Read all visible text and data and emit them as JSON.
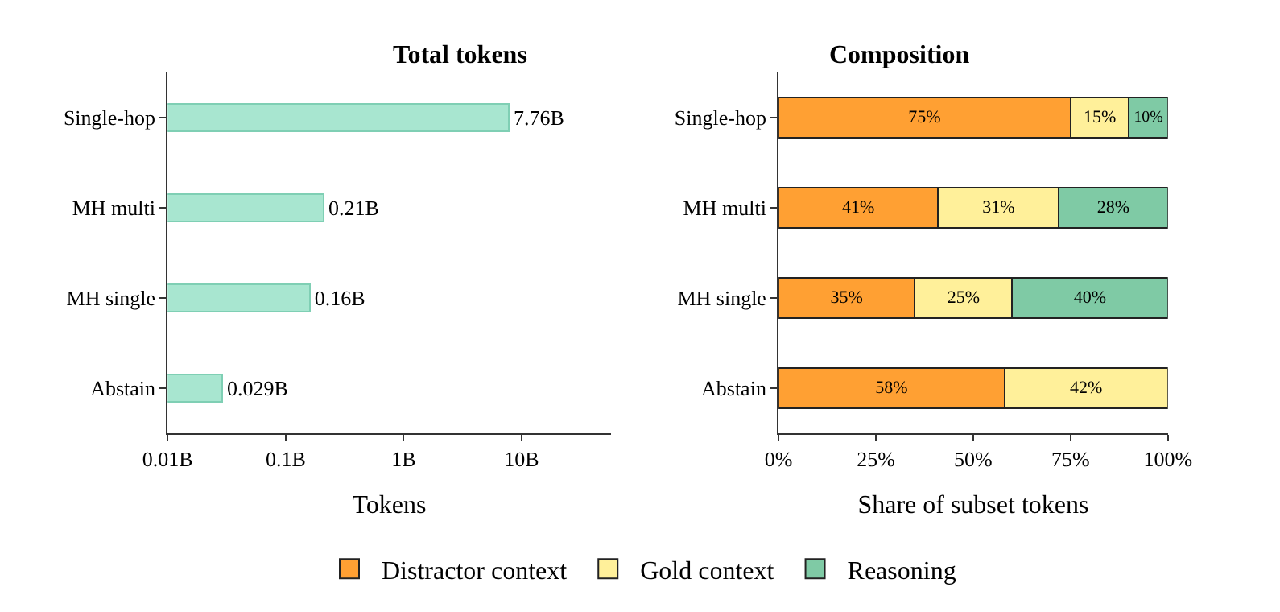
{
  "chart_data": [
    {
      "type": "bar",
      "title": "Total tokens",
      "xlabel": "Tokens",
      "orientation": "horizontal",
      "log": "x",
      "categories": [
        "Single-hop",
        "MH multi",
        "MH single",
        "Abstain"
      ],
      "series": [
        {
          "color": "#a8e6d0",
          "values": [
            7.76,
            0.21,
            0.16,
            0.029
          ],
          "value_labels": [
            "7.76B",
            "0.21B",
            "0.16B",
            "0.029B"
          ]
        }
      ],
      "xlim": [
        0.01,
        57
      ],
      "xticks": [
        {
          "value": 0.01,
          "label": "0.01B"
        },
        {
          "value": 0.1,
          "label": "0.1B"
        },
        {
          "value": 1,
          "label": "1B"
        },
        {
          "value": 10,
          "label": "10B"
        }
      ],
      "grid": false,
      "legend": false
    },
    {
      "type": "bar",
      "title": "Composition",
      "xlabel": "Share of subset tokens",
      "orientation": "horizontal",
      "stacked": true,
      "categories": [
        "Single-hop",
        "MH multi",
        "MH single",
        "Abstain"
      ],
      "series": [
        {
          "name": "Distractor context",
          "color": "#ffa033",
          "values": [
            75,
            41,
            35,
            58
          ],
          "value_labels": [
            "75%",
            "41%",
            "35%",
            "58%"
          ]
        },
        {
          "name": "Gold context",
          "color": "#fff09a",
          "values": [
            15,
            31,
            25,
            42
          ],
          "value_labels": [
            "15%",
            "31%",
            "25%",
            "42%"
          ]
        },
        {
          "name": "Reasoning",
          "color": "#7fcaa5",
          "values": [
            10,
            28,
            40,
            null
          ],
          "value_labels": [
            "10%",
            "28%",
            "40%",
            null
          ]
        }
      ],
      "xlim": [
        0,
        100
      ],
      "xticks": [
        {
          "value": 0,
          "label": "0%"
        },
        {
          "value": 25,
          "label": "25%"
        },
        {
          "value": 50,
          "label": "50%"
        },
        {
          "value": 75,
          "label": "75%"
        },
        {
          "value": 100,
          "label": "100%"
        }
      ],
      "grid": false,
      "legend": "bottom"
    }
  ]
}
